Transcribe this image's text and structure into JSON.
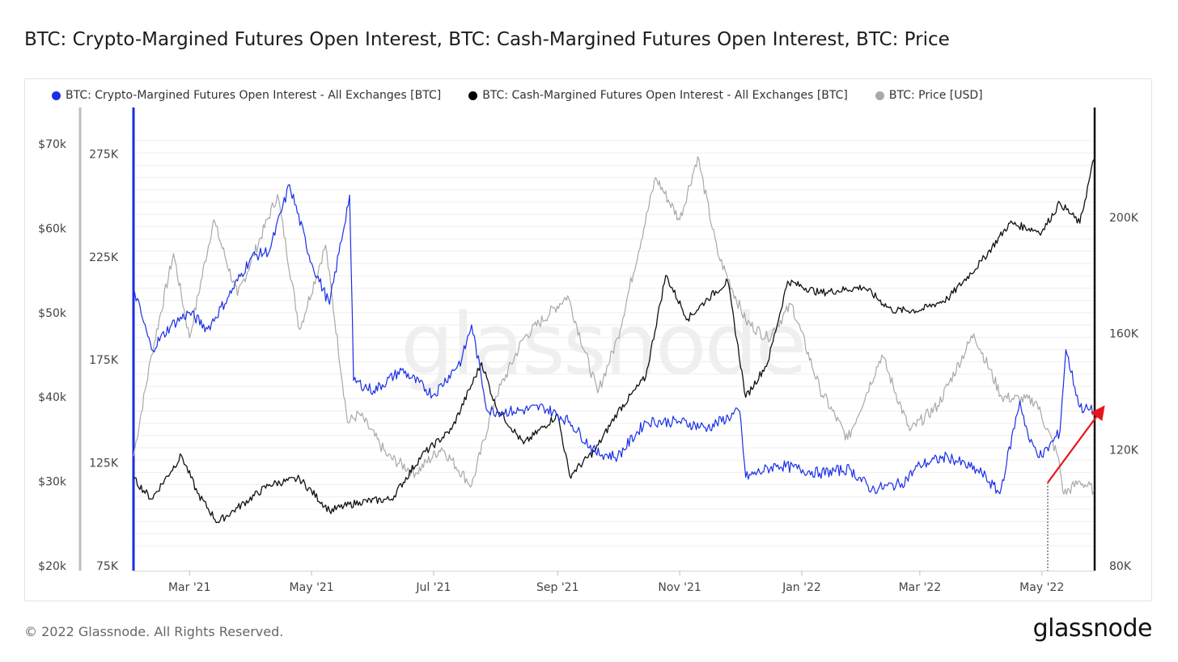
{
  "title": "BTC: Crypto-Margined Futures Open Interest, BTC: Cash-Margined Futures Open Interest, BTC: Price",
  "footer": "© 2022 Glassnode. All Rights Reserved.",
  "logo": "glassnode",
  "watermark": "glassnode",
  "legend": [
    {
      "label": "BTC: Crypto-Margined Futures Open Interest - All Exchanges [BTC]",
      "color": "#1a2fe6"
    },
    {
      "label": "BTC: Cash-Margined Futures Open Interest - All Exchanges [BTC]",
      "color": "#000000"
    },
    {
      "label": "BTC: Price [USD]",
      "color": "#a9a9a9"
    }
  ],
  "chart_data": {
    "type": "line",
    "title": "BTC: Crypto-Margined Futures Open Interest, BTC: Cash-Margined Futures Open Interest, BTC: Price",
    "x_ticks": [
      "Mar '21",
      "May '21",
      "Jul '21",
      "Sep '21",
      "Nov '21",
      "Jan '22",
      "Mar '22",
      "May '22"
    ],
    "x_range": [
      "2021-02-01",
      "2022-05-27"
    ],
    "price_axis": {
      "ticks": [
        "$20k",
        "$30k",
        "$40k",
        "$50k",
        "$60k",
        "$70k"
      ],
      "range": [
        20000,
        72000
      ]
    },
    "crypto_oi_axis": {
      "ticks": [
        "75K",
        "125K",
        "175K",
        "225K",
        "275K"
      ],
      "range": [
        75000,
        277000
      ]
    },
    "cash_oi_axis": {
      "ticks": [
        "80K",
        "120K",
        "160K",
        "200K"
      ],
      "range": [
        80000,
        236000
      ]
    },
    "annotation": {
      "type": "arrow",
      "color": "#e8141b",
      "description_from": "2022-05-01",
      "to": "2022-05-27"
    },
    "series": [
      {
        "name": "BTC: Crypto-Margined Futures Open Interest - All Exchanges [BTC]",
        "color": "#1a2fe6",
        "axis": "crypto_oi_axis",
        "points": [
          [
            "2021-02-01",
            210000
          ],
          [
            "2021-02-10",
            180000
          ],
          [
            "2021-02-20",
            192000
          ],
          [
            "2021-03-01",
            198000
          ],
          [
            "2021-03-10",
            190000
          ],
          [
            "2021-03-20",
            205000
          ],
          [
            "2021-04-01",
            225000
          ],
          [
            "2021-04-10",
            228000
          ],
          [
            "2021-04-20",
            260000
          ],
          [
            "2021-05-01",
            222000
          ],
          [
            "2021-05-10",
            202000
          ],
          [
            "2021-05-20",
            255000
          ],
          [
            "2021-05-22",
            165000
          ],
          [
            "2021-06-01",
            160000
          ],
          [
            "2021-06-15",
            170000
          ],
          [
            "2021-07-01",
            158000
          ],
          [
            "2021-07-15",
            175000
          ],
          [
            "2021-07-20",
            192000
          ],
          [
            "2021-07-28",
            150000
          ],
          [
            "2021-08-10",
            150000
          ],
          [
            "2021-08-25",
            152000
          ],
          [
            "2021-09-07",
            145000
          ],
          [
            "2021-09-20",
            130000
          ],
          [
            "2021-10-01",
            128000
          ],
          [
            "2021-10-15",
            145000
          ],
          [
            "2021-11-01",
            145000
          ],
          [
            "2021-11-15",
            142000
          ],
          [
            "2021-12-01",
            150000
          ],
          [
            "2021-12-04",
            118000
          ],
          [
            "2021-12-20",
            124000
          ],
          [
            "2022-01-10",
            120000
          ],
          [
            "2022-01-25",
            122000
          ],
          [
            "2022-02-05",
            112000
          ],
          [
            "2022-02-20",
            115000
          ],
          [
            "2022-03-01",
            124000
          ],
          [
            "2022-03-15",
            128000
          ],
          [
            "2022-04-01",
            120000
          ],
          [
            "2022-04-10",
            110000
          ],
          [
            "2022-04-20",
            155000
          ],
          [
            "2022-04-25",
            135000
          ],
          [
            "2022-05-01",
            128000
          ],
          [
            "2022-05-10",
            140000
          ],
          [
            "2022-05-13",
            180000
          ],
          [
            "2022-05-20",
            152000
          ],
          [
            "2022-05-27",
            150000
          ]
        ]
      },
      {
        "name": "BTC: Cash-Margined Futures Open Interest - All Exchanges [BTC]",
        "color": "#111111",
        "axis": "cash_oi_axis",
        "points": [
          [
            "2021-02-01",
            110000
          ],
          [
            "2021-02-10",
            103000
          ],
          [
            "2021-02-25",
            118000
          ],
          [
            "2021-03-05",
            105000
          ],
          [
            "2021-03-15",
            95000
          ],
          [
            "2021-03-25",
            100000
          ],
          [
            "2021-04-10",
            108000
          ],
          [
            "2021-04-25",
            110000
          ],
          [
            "2021-05-10",
            99000
          ],
          [
            "2021-05-25",
            102000
          ],
          [
            "2021-06-10",
            103000
          ],
          [
            "2021-06-25",
            118000
          ],
          [
            "2021-07-10",
            127000
          ],
          [
            "2021-07-25",
            150000
          ],
          [
            "2021-08-01",
            135000
          ],
          [
            "2021-08-15",
            122000
          ],
          [
            "2021-09-01",
            132000
          ],
          [
            "2021-09-07",
            111000
          ],
          [
            "2021-09-20",
            120000
          ],
          [
            "2021-10-01",
            133000
          ],
          [
            "2021-10-15",
            145000
          ],
          [
            "2021-10-25",
            180000
          ],
          [
            "2021-11-05",
            165000
          ],
          [
            "2021-11-15",
            172000
          ],
          [
            "2021-11-25",
            178000
          ],
          [
            "2021-12-04",
            138000
          ],
          [
            "2021-12-15",
            150000
          ],
          [
            "2021-12-25",
            178000
          ],
          [
            "2022-01-10",
            174000
          ],
          [
            "2022-02-01",
            176000
          ],
          [
            "2022-02-15",
            168000
          ],
          [
            "2022-03-01",
            168000
          ],
          [
            "2022-03-15",
            172000
          ],
          [
            "2022-04-01",
            185000
          ],
          [
            "2022-04-15",
            198000
          ],
          [
            "2022-05-01",
            195000
          ],
          [
            "2022-05-10",
            205000
          ],
          [
            "2022-05-20",
            198000
          ],
          [
            "2022-05-27",
            220000
          ]
        ]
      },
      {
        "name": "BTC: Price [USD]",
        "color": "#a9a9a9",
        "axis": "price_axis",
        "points": [
          [
            "2021-02-01",
            33000
          ],
          [
            "2021-02-10",
            45000
          ],
          [
            "2021-02-21",
            57000
          ],
          [
            "2021-03-01",
            47000
          ],
          [
            "2021-03-13",
            61000
          ],
          [
            "2021-03-25",
            52000
          ],
          [
            "2021-04-14",
            64000
          ],
          [
            "2021-04-25",
            48000
          ],
          [
            "2021-05-08",
            58000
          ],
          [
            "2021-05-19",
            37000
          ],
          [
            "2021-05-25",
            38000
          ],
          [
            "2021-06-08",
            33000
          ],
          [
            "2021-06-22",
            31000
          ],
          [
            "2021-07-05",
            34000
          ],
          [
            "2021-07-20",
            29500
          ],
          [
            "2021-08-01",
            40000
          ],
          [
            "2021-08-15",
            47000
          ],
          [
            "2021-09-06",
            52000
          ],
          [
            "2021-09-21",
            40500
          ],
          [
            "2021-10-01",
            47000
          ],
          [
            "2021-10-20",
            66000
          ],
          [
            "2021-11-01",
            61000
          ],
          [
            "2021-11-10",
            68500
          ],
          [
            "2021-11-20",
            57000
          ],
          [
            "2021-12-04",
            49000
          ],
          [
            "2021-12-15",
            47000
          ],
          [
            "2021-12-27",
            51000
          ],
          [
            "2022-01-10",
            41000
          ],
          [
            "2022-01-24",
            35000
          ],
          [
            "2022-02-10",
            45000
          ],
          [
            "2022-02-24",
            36000
          ],
          [
            "2022-03-10",
            39000
          ],
          [
            "2022-03-28",
            47500
          ],
          [
            "2022-04-11",
            40000
          ],
          [
            "2022-04-28",
            39500
          ],
          [
            "2022-05-09",
            33000
          ],
          [
            "2022-05-12",
            28500
          ],
          [
            "2022-05-20",
            30000
          ],
          [
            "2022-05-27",
            29000
          ]
        ]
      }
    ]
  }
}
